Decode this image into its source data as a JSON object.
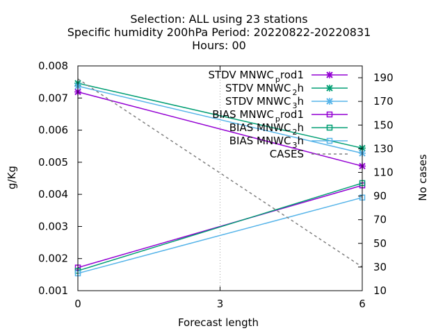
{
  "chart_data": {
    "type": "line",
    "title_lines": [
      "Selection: ALL using    23 stations",
      "Specific humidity 200hPa   Period: 20220822-20220831",
      "Hours:  00"
    ],
    "xlabel": "Forecast length",
    "ylabel": "g/Kg",
    "y2label": "No cases",
    "x_ticks": [
      "0",
      "3",
      "6"
    ],
    "xlim": [
      0,
      6
    ],
    "ylim": [
      0.001,
      0.008
    ],
    "y_ticks": [
      "0.001",
      "0.002",
      "0.003",
      "0.004",
      "0.005",
      "0.006",
      "0.007",
      "0.008"
    ],
    "y2lim": [
      10,
      200
    ],
    "y2_ticks": [
      "10",
      "30",
      "50",
      "70",
      "90",
      "110",
      "130",
      "150",
      "170",
      "190"
    ],
    "grid": "x-dotted-at-3",
    "legend_position": "top-right",
    "series": [
      {
        "name_main": "STDV MNWC",
        "name_sub": "p",
        "name_tail": "rod1",
        "color": "#9400D3",
        "marker": "x",
        "axis": "y",
        "x": [
          0,
          6
        ],
        "values": [
          0.00719,
          0.00488
        ]
      },
      {
        "name_main": "STDV MNWC",
        "name_sub": "2",
        "name_tail": "h",
        "color": "#009E73",
        "marker": "x",
        "axis": "y",
        "x": [
          0,
          6
        ],
        "values": [
          0.00746,
          0.00544
        ]
      },
      {
        "name_main": "STDV MNWC",
        "name_sub": "3",
        "name_tail": "h",
        "color": "#56B4E9",
        "marker": "x",
        "axis": "y",
        "x": [
          0,
          6
        ],
        "values": [
          0.00737,
          0.00528
        ]
      },
      {
        "name_main": "BIAS MNWC",
        "name_sub": "p",
        "name_tail": "rod1",
        "color": "#9400D3",
        "marker": "square",
        "axis": "y",
        "x": [
          0,
          6
        ],
        "values": [
          0.00172,
          0.00428
        ]
      },
      {
        "name_main": "BIAS MNWC",
        "name_sub": "2",
        "name_tail": "h",
        "color": "#009E73",
        "marker": "square",
        "axis": "y",
        "x": [
          0,
          6
        ],
        "values": [
          0.00162,
          0.00435
        ]
      },
      {
        "name_main": "BIAS MNWC",
        "name_sub": "3",
        "name_tail": "h",
        "color": "#56B4E9",
        "marker": "square",
        "axis": "y",
        "x": [
          0,
          6
        ],
        "values": [
          0.00154,
          0.0039
        ]
      },
      {
        "name_main": "CASES",
        "name_sub": "",
        "name_tail": "",
        "color": "#808080",
        "marker": "none",
        "dash": true,
        "axis": "y2",
        "x": [
          0,
          6
        ],
        "values": [
          189,
          30
        ]
      }
    ]
  }
}
